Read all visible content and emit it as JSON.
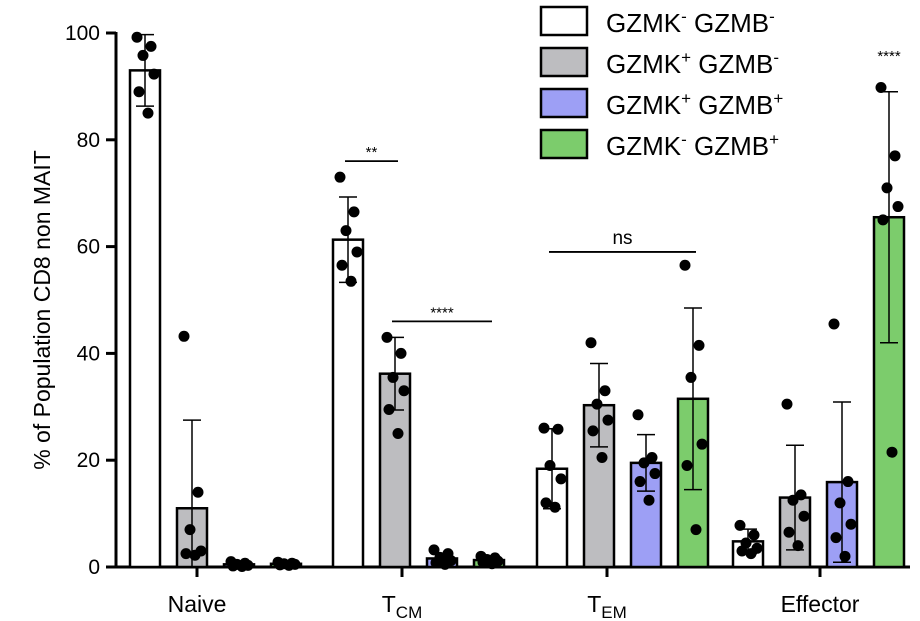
{
  "chart_data": {
    "type": "bar",
    "title": "",
    "ylabel": "% of Population CD8 non MAIT",
    "xlabel": "",
    "ylim": [
      0,
      100
    ],
    "yticks": [
      "0",
      "20",
      "40",
      "60",
      "80",
      "100"
    ],
    "grid": false,
    "legend_position": "top-right",
    "categories": [
      {
        "label": "Naive",
        "main": "Naive",
        "sub": ""
      },
      {
        "label": "TCM",
        "main": "T",
        "sub": "CM"
      },
      {
        "label": "TEM",
        "main": "T",
        "sub": "EM"
      },
      {
        "label": "Effector",
        "main": "Effector",
        "sub": ""
      }
    ],
    "series": [
      {
        "name": "GZMK- GZMB-",
        "k_sign": "-",
        "b_sign": "-",
        "color": "#ffffff",
        "values": [
          93.0,
          61.3,
          18.4,
          4.8
        ],
        "sd": [
          6.7,
          8.0,
          7.5,
          2.3
        ],
        "points": [
          [
            99.2,
            97.5,
            95.8,
            92.3,
            89.0,
            85.0
          ],
          [
            73.0,
            66.5,
            63.0,
            59.0,
            56.5,
            53.5
          ],
          [
            26.0,
            25.8,
            19.0,
            16.5,
            12.0,
            11.2
          ],
          [
            7.8,
            6.0,
            4.5,
            3.5,
            3.0,
            2.5
          ]
        ]
      },
      {
        "name": "GZMK+ GZMB-",
        "k_sign": "+",
        "b_sign": "-",
        "color": "#bdbdc0",
        "values": [
          11.0,
          36.2,
          30.3,
          13.0
        ],
        "sd": [
          16.5,
          6.8,
          7.8,
          9.8
        ],
        "points": [
          [
            43.2,
            14.0,
            7.0,
            3.0,
            2.5,
            2.2
          ],
          [
            43.0,
            40.0,
            35.5,
            33.0,
            29.5,
            25.0
          ],
          [
            42.0,
            33.0,
            30.5,
            27.5,
            25.5,
            20.5
          ],
          [
            30.5,
            13.5,
            12.5,
            9.5,
            6.5,
            4.0
          ]
        ]
      },
      {
        "name": "GZMK+ GZMB+",
        "k_sign": "+",
        "b_sign": "+",
        "color": "#9d9ff5",
        "values": [
          0.5,
          1.6,
          19.5,
          15.9
        ],
        "sd": [
          0.3,
          0.9,
          5.3,
          15.0
        ],
        "points": [
          [
            1.0,
            0.7,
            0.5,
            0.3,
            0.2,
            0.1
          ],
          [
            3.2,
            2.5,
            1.8,
            1.2,
            0.8,
            0.5
          ],
          [
            28.5,
            20.5,
            19.5,
            17.5,
            16.0,
            12.5
          ],
          [
            45.5,
            16.0,
            12.0,
            8.0,
            5.5,
            2.0
          ]
        ]
      },
      {
        "name": "GZMK- GZMB+",
        "k_sign": "-",
        "b_sign": "+",
        "color": "#7ccc6c",
        "values": [
          0.6,
          1.3,
          31.5,
          65.5
        ],
        "sd": [
          0.3,
          0.6,
          17.0,
          23.5
        ],
        "points": [
          [
            0.9,
            0.7,
            0.6,
            0.5,
            0.4,
            0.3
          ],
          [
            2.0,
            1.7,
            1.4,
            1.1,
            0.9,
            0.6
          ],
          [
            56.5,
            41.5,
            35.5,
            23.0,
            19.0,
            7.0
          ],
          [
            89.8,
            77.0,
            71.0,
            67.5,
            65.0,
            21.5
          ]
        ]
      }
    ],
    "significance": [
      {
        "label": "**",
        "category": 1,
        "from_series": 0,
        "to_series": 1,
        "y": 76
      },
      {
        "label": "****",
        "category": 1,
        "from_series": 1,
        "to_series": 3,
        "y": 46
      },
      {
        "label": "ns",
        "category": 2,
        "from_series": 0,
        "to_series": 3,
        "y": 59
      },
      {
        "label": "****",
        "category": 3,
        "from_series": 3,
        "to_series": 3,
        "y": 94
      }
    ]
  }
}
